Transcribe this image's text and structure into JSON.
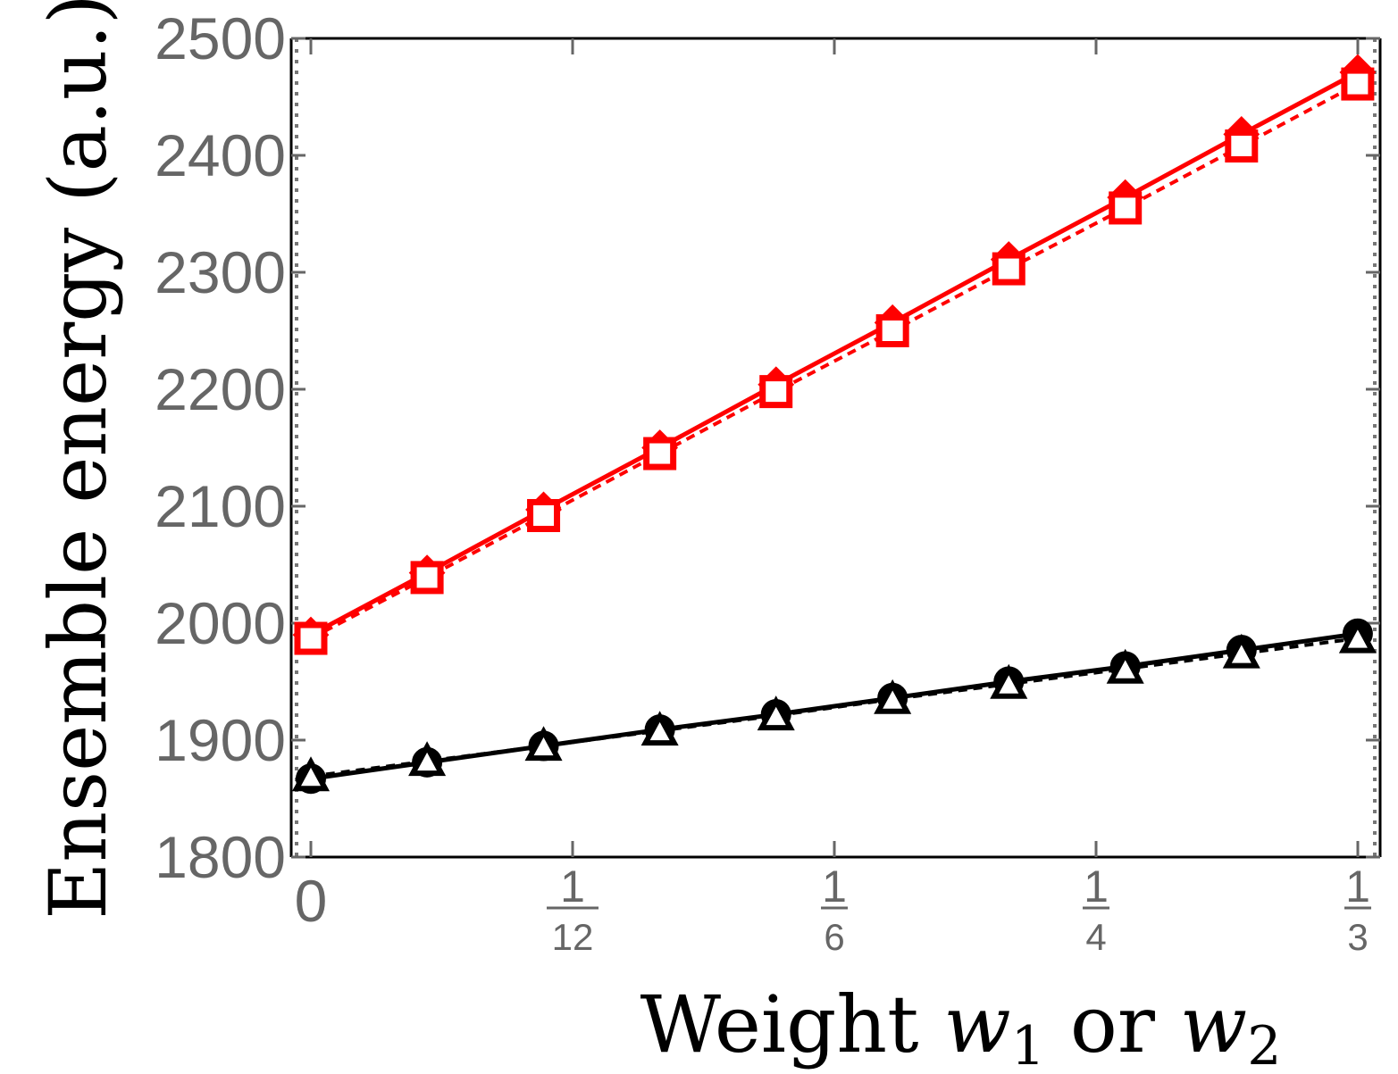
{
  "chart_data": {
    "type": "line",
    "xlabel": {
      "prefix": "Weight ",
      "var1": "w",
      "sub1": "1",
      "mid": " or ",
      "var2": "w",
      "sub2": "2"
    },
    "ylabel": "Ensemble energy (a.u.)",
    "xlim": [
      0,
      0.3333
    ],
    "ylim": [
      1800,
      2500
    ],
    "y_ticks": [
      "1800",
      "1900",
      "2000",
      "2100",
      "2200",
      "2300",
      "2400",
      "2500"
    ],
    "y_tick_values": [
      1800,
      1900,
      2000,
      2100,
      2200,
      2300,
      2400,
      2500
    ],
    "x_ticks": [
      {
        "value": 0,
        "num": "0",
        "den": ""
      },
      {
        "value": 0.08333,
        "num": "1",
        "den": "12"
      },
      {
        "value": 0.16667,
        "num": "1",
        "den": "6"
      },
      {
        "value": 0.25,
        "num": "1",
        "den": "4"
      },
      {
        "value": 0.33333,
        "num": "1",
        "den": "3"
      }
    ],
    "x": [
      0,
      0.037,
      0.0741,
      0.1111,
      0.1481,
      0.1852,
      0.2222,
      0.2593,
      0.2963,
      0.3333
    ],
    "series": [
      {
        "values": [
          1990,
          2043,
          2097,
          2150,
          2204,
          2257,
          2311,
          2364,
          2418,
          2471
        ],
        "color": "#ff0000",
        "line": "solid",
        "marker": "diamond"
      },
      {
        "values": [
          1987,
          2039,
          2092,
          2145,
          2198,
          2250,
          2303,
          2355,
          2408,
          2461
        ],
        "color": "#ff0000",
        "line": "dashed",
        "marker": "square"
      },
      {
        "values": [
          1867,
          1881,
          1895,
          1909,
          1922,
          1936,
          1950,
          1963,
          1977,
          1991
        ],
        "color": "#000000",
        "line": "solid",
        "marker": "circle"
      },
      {
        "values": [
          1869,
          1882,
          1895,
          1908,
          1921,
          1935,
          1948,
          1961,
          1974,
          1987
        ],
        "color": "#000000",
        "line": "dashed",
        "marker": "triangle"
      }
    ],
    "grid": false,
    "legend": "none"
  }
}
